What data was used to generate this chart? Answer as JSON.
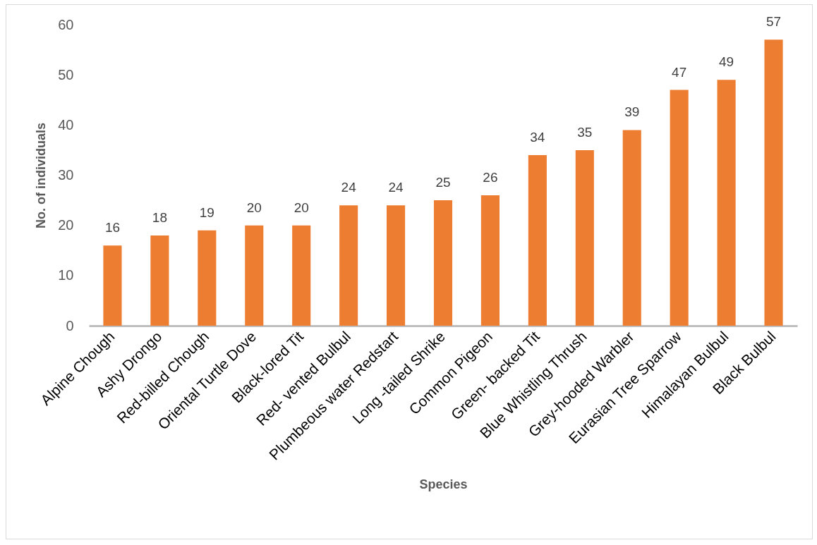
{
  "chart_data": {
    "type": "bar",
    "xlabel": "Species",
    "ylabel": "No. of individuals",
    "categories": [
      "Alpine Chough",
      "Ashy Drongo",
      "Red-billed Chough",
      "Oriental Turtle Dove",
      "Black-lored Tit",
      "Red- vented Bulbul",
      "Plumbeous water Redstart",
      "Long -tailed Shrike",
      "Common Pigeon",
      "Green- backed Tit",
      "Blue Whistling Thrush",
      "Grey-hooded Warbler",
      "Eurasian Tree Sparrow",
      "Himalayan Bulbul",
      "Black Bulbul"
    ],
    "values": [
      16,
      18,
      19,
      20,
      20,
      24,
      24,
      25,
      26,
      34,
      35,
      39,
      47,
      49,
      57
    ],
    "color": "#ed7d31",
    "ylim": [
      0,
      60
    ],
    "yticks": [
      0,
      10,
      20,
      30,
      40,
      50,
      60
    ],
    "grid": false,
    "data_labels": true
  }
}
